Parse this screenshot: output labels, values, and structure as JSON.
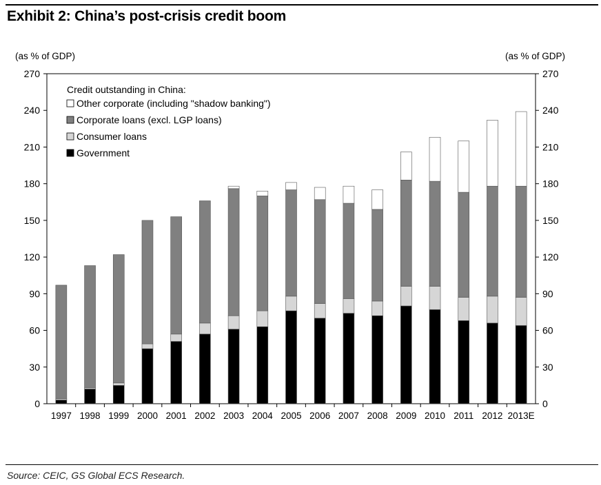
{
  "title": "Exhibit 2: China’s post-crisis credit boom",
  "source": "Source: CEIC, GS Global ECS Research.",
  "chart_data": {
    "type": "bar",
    "stacked": true,
    "title": "Exhibit 2: China’s post-crisis credit boom",
    "ylabel_left": "(as % of GDP)",
    "ylabel_right": "(as % of GDP)",
    "ylim": [
      0,
      270
    ],
    "yticks": [
      0,
      30,
      60,
      90,
      120,
      150,
      180,
      210,
      240,
      270
    ],
    "grid": false,
    "legend_title": "Credit outstanding in China:",
    "legend_position": "top-left",
    "categories": [
      "1997",
      "1998",
      "1999",
      "2000",
      "2001",
      "2002",
      "2003",
      "2004",
      "2005",
      "2006",
      "2007",
      "2008",
      "2009",
      "2010",
      "2011",
      "2012",
      "2013E"
    ],
    "series": [
      {
        "name": "Government",
        "color": "#000000",
        "values": [
          3,
          12,
          15,
          45,
          51,
          57,
          61,
          63,
          76,
          70,
          74,
          72,
          80,
          77,
          68,
          66,
          64
        ]
      },
      {
        "name": "Consumer loans",
        "color": "#d6d6d6",
        "values": [
          1,
          1,
          2,
          4,
          6,
          9,
          11,
          13,
          12,
          12,
          12,
          12,
          16,
          19,
          19,
          22,
          23
        ]
      },
      {
        "name": "Corporate loans (excl. LGP loans)",
        "color": "#808080",
        "values": [
          93,
          100,
          105,
          101,
          96,
          100,
          104,
          94,
          87,
          85,
          78,
          75,
          87,
          86,
          86,
          90,
          91
        ]
      },
      {
        "name": "Other corporate (including \"shadow banking\")",
        "color": "#ffffff",
        "values": [
          0,
          0,
          0,
          0,
          0,
          0,
          2,
          4,
          6,
          10,
          14,
          16,
          23,
          36,
          42,
          54,
          61
        ]
      }
    ],
    "legend_order": [
      "Other corporate (including \"shadow banking\")",
      "Corporate loans (excl. LGP loans)",
      "Consumer loans",
      "Government"
    ]
  }
}
